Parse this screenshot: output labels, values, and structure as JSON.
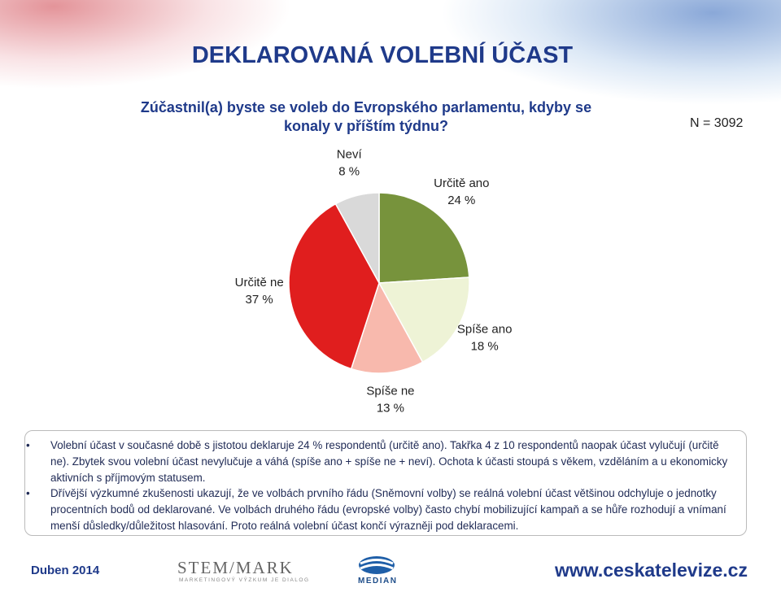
{
  "title": "DEKLAROVANÁ VOLEBNÍ ÚČAST",
  "question": "Zúčastnil(a) byste se voleb do Evropského parlamentu, kdyby se konaly v příštím týdnu?",
  "sample": "N = 3092",
  "chart_data": {
    "type": "pie",
    "categories": [
      "Určitě ano",
      "Spíše ano",
      "Spíše ne",
      "Určitě ne",
      "Neví"
    ],
    "values": [
      24,
      18,
      13,
      37,
      8
    ],
    "value_labels": [
      "24 %",
      "18 %",
      "13 %",
      "37 %",
      "8 %"
    ],
    "colors": [
      "#77933c",
      "#eef3d6",
      "#f8b9ad",
      "#e01e1e",
      "#d9d9d9"
    ]
  },
  "bullets": [
    "Volební účast v současné době s jistotou deklaruje 24 % respondentů (určitě ano). Takřka 4 z 10 respondentů naopak účast vylučují (určitě ne). Zbytek svou volební účast nevylučuje a váhá (spíše ano + spíše ne + neví). Ochota k účasti stoupá s věkem, vzděláním a u ekonomicky aktivních s příjmovým statusem.",
    "Dřívější výzkumné zkušenosti ukazují, že ve volbách prvního řádu (Sněmovní volby) se reálná volební účast většinou odchyluje o jednotky procentních bodů od deklarované. Ve volbách druhého řádu (evropské volby) často chybí mobilizující kampaň a se hůře rozhodují a vnímaní menší důsledky/důležitost hlasování. Proto reálná volební účast končí výrazněji pod deklaracemi."
  ],
  "footer": {
    "date": "Duben 2014",
    "logo_stem": "STEM/MARK",
    "logo_stem_sub": "MARKETINGOVÝ VÝZKUM JE DIALOG",
    "logo_median": "MEDIAN",
    "website": "www.ceskatelevize.cz"
  }
}
